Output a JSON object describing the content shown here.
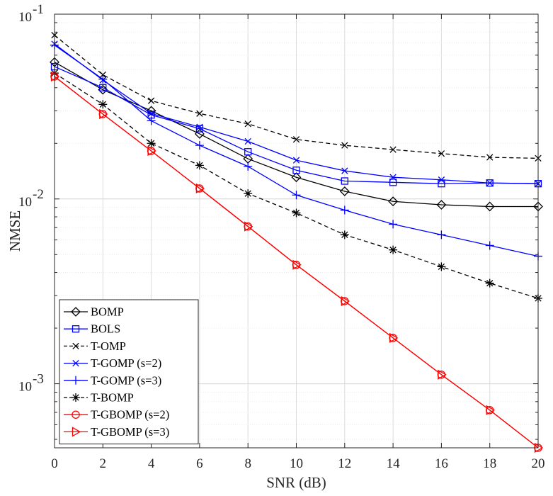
{
  "chart_data": {
    "type": "line",
    "title": "",
    "xlabel": "SNR (dB)",
    "ylabel": "NMSE",
    "yscale": "log",
    "xlim": [
      0,
      20
    ],
    "ylim": [
      0.00045,
      0.1
    ],
    "grid": true,
    "x": [
      0,
      2,
      4,
      6,
      8,
      10,
      12,
      14,
      16,
      18,
      20
    ],
    "xticks": [
      "0",
      "2",
      "4",
      "6",
      "8",
      "10",
      "12",
      "14",
      "16",
      "18",
      "20"
    ],
    "yticks": [
      {
        "base": "10",
        "exp": "-1",
        "value": 0.1
      },
      {
        "base": "10",
        "exp": "-2",
        "value": 0.01
      },
      {
        "base": "10",
        "exp": "-3",
        "value": 0.001
      }
    ],
    "legend_position": "bottom-left",
    "series": [
      {
        "name": "BOMP",
        "color": "#000000",
        "dash": "solid",
        "marker": "diamond",
        "values": [
          0.055,
          0.039,
          0.03,
          0.0225,
          0.0165,
          0.0131,
          0.011,
          0.0097,
          0.0093,
          0.0091,
          0.0091
        ]
      },
      {
        "name": "BOLS",
        "color": "#0000ff",
        "dash": "solid",
        "marker": "square",
        "values": [
          0.052,
          0.04,
          0.0285,
          0.024,
          0.018,
          0.0143,
          0.0125,
          0.0123,
          0.0121,
          0.0122,
          0.0121
        ]
      },
      {
        "name": "T-OMP",
        "color": "#000000",
        "dash": "dashed",
        "marker": "x",
        "values": [
          0.077,
          0.047,
          0.034,
          0.029,
          0.0255,
          0.021,
          0.0195,
          0.0185,
          0.0176,
          0.0168,
          0.0166
        ]
      },
      {
        "name": "T-GOMP (s=2)",
        "color": "#0000ff",
        "dash": "solid",
        "marker": "x",
        "values": [
          0.069,
          0.044,
          0.029,
          0.0245,
          0.0205,
          0.0162,
          0.0142,
          0.0131,
          0.0127,
          0.0122,
          0.0121
        ]
      },
      {
        "name": "T-GOMP (s=3)",
        "color": "#0000ff",
        "dash": "solid",
        "marker": "plus",
        "values": [
          0.068,
          0.0445,
          0.0265,
          0.0195,
          0.015,
          0.0105,
          0.0087,
          0.0073,
          0.0064,
          0.0056,
          0.0049
        ]
      },
      {
        "name": "T-BOMP",
        "color": "#000000",
        "dash": "dashed",
        "marker": "asterisk",
        "values": [
          0.048,
          0.0325,
          0.02,
          0.0152,
          0.0107,
          0.0084,
          0.0064,
          0.0053,
          0.0043,
          0.0035,
          0.0029
        ]
      },
      {
        "name": "T-GBOMP (s=2)",
        "color": "#ff0000",
        "dash": "solid",
        "marker": "circle",
        "values": [
          0.046,
          0.0288,
          0.0182,
          0.0114,
          0.0071,
          0.0044,
          0.0028,
          0.00177,
          0.00112,
          0.00072,
          0.00045
        ]
      },
      {
        "name": "T-GBOMP (s=3)",
        "color": "#ff0000",
        "dash": "solid",
        "marker": "triangle-right",
        "values": [
          0.046,
          0.0288,
          0.0182,
          0.0114,
          0.0071,
          0.0044,
          0.0028,
          0.00177,
          0.00112,
          0.00072,
          0.00045
        ]
      }
    ]
  }
}
